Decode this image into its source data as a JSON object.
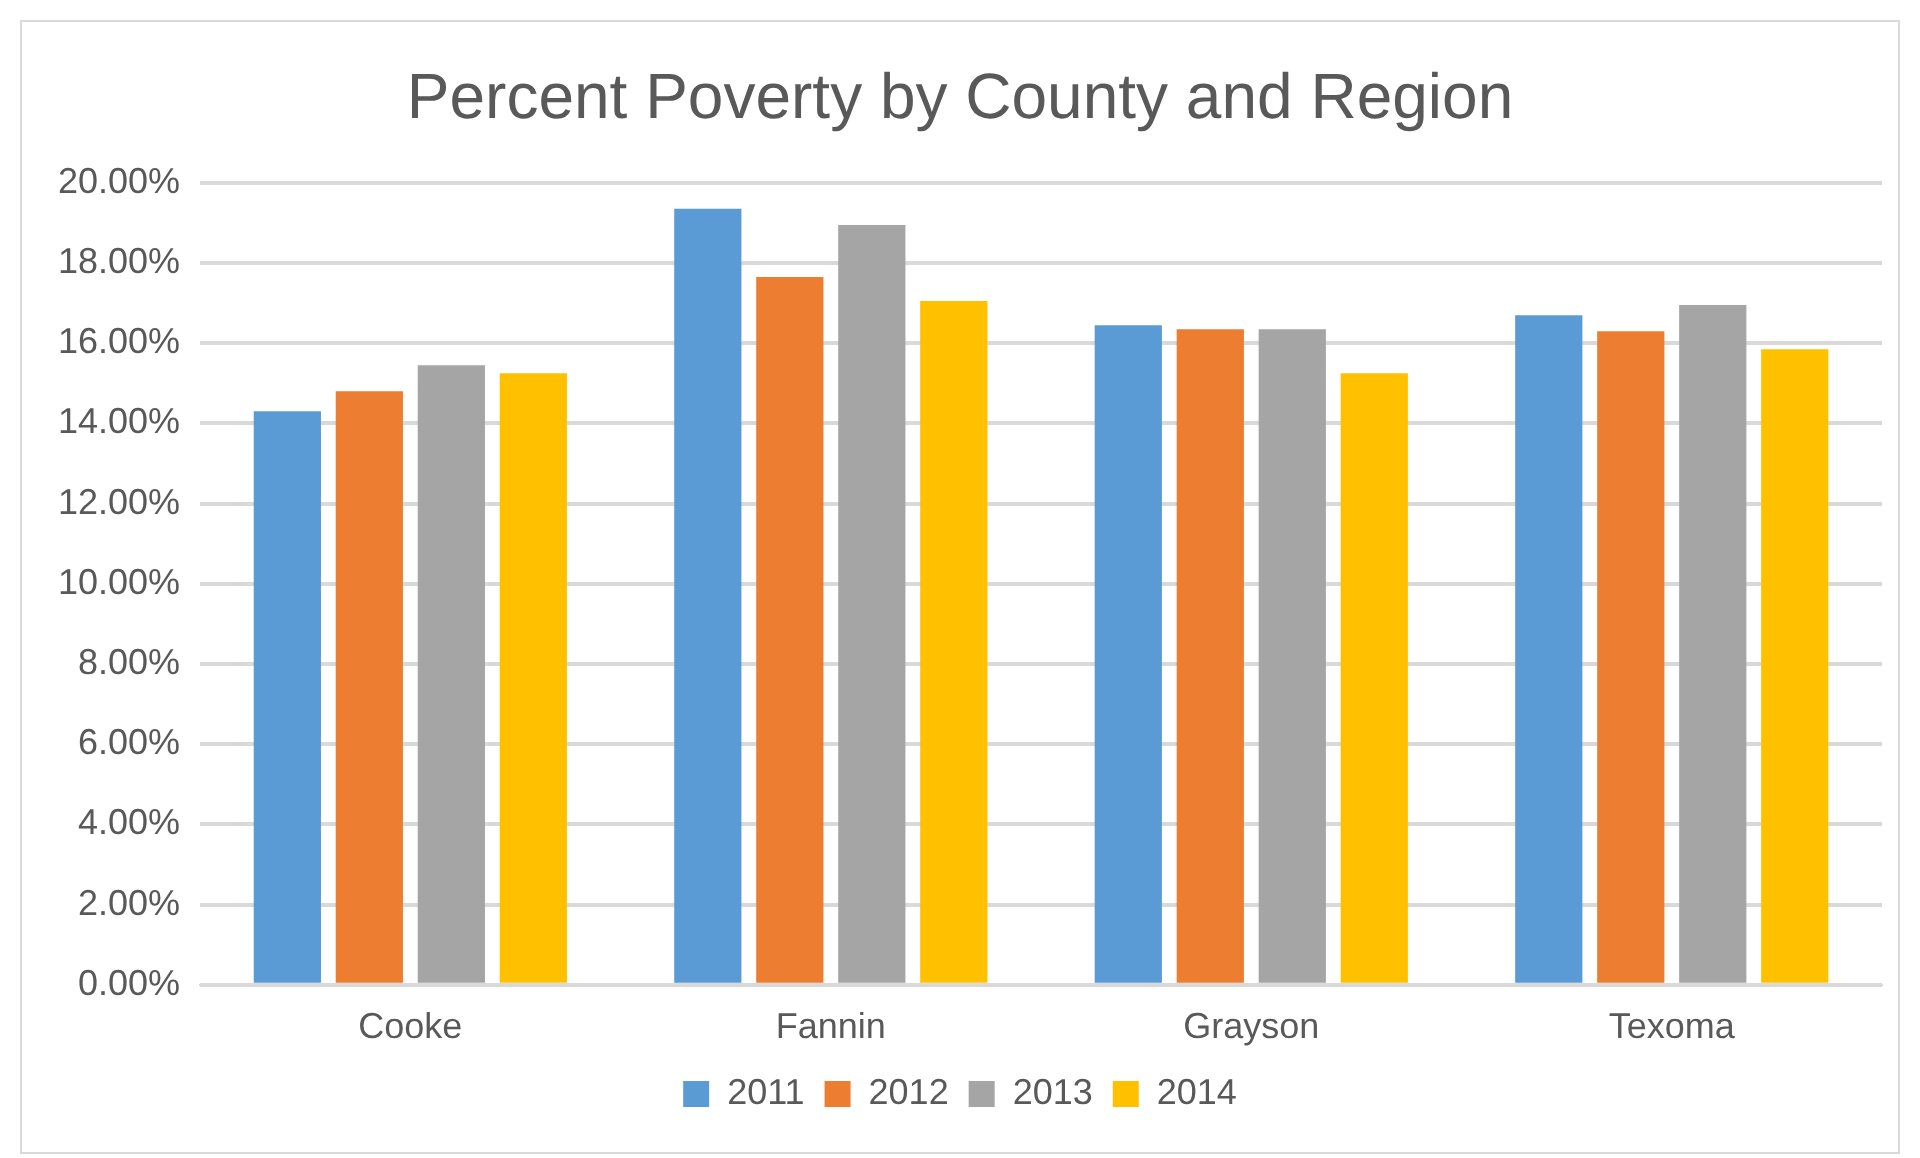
{
  "chart_data": {
    "type": "bar",
    "title": "Percent Poverty by County and Region",
    "categories": [
      "Cooke",
      "Fannin",
      "Grayson",
      "Texoma"
    ],
    "series": [
      {
        "name": "2011",
        "color": "#5b9bd5",
        "values": [
          14.3,
          19.35,
          16.45,
          16.7
        ]
      },
      {
        "name": "2012",
        "color": "#ed7d31",
        "values": [
          14.8,
          17.65,
          16.35,
          16.3
        ]
      },
      {
        "name": "2013",
        "color": "#a5a5a5",
        "values": [
          15.45,
          18.95,
          16.35,
          16.95
        ]
      },
      {
        "name": "2014",
        "color": "#ffc000",
        "values": [
          15.25,
          17.05,
          15.25,
          15.85
        ]
      }
    ],
    "ylim": [
      0,
      20
    ],
    "yticks": [
      {
        "value": 0,
        "label": "0.00%"
      },
      {
        "value": 2,
        "label": "2.00%"
      },
      {
        "value": 4,
        "label": "4.00%"
      },
      {
        "value": 6,
        "label": "6.00%"
      },
      {
        "value": 8,
        "label": "8.00%"
      },
      {
        "value": 10,
        "label": "10.00%"
      },
      {
        "value": 12,
        "label": "12.00%"
      },
      {
        "value": 14,
        "label": "14.00%"
      },
      {
        "value": 16,
        "label": "16.00%"
      },
      {
        "value": 18,
        "label": "18.00%"
      },
      {
        "value": 20,
        "label": "20.00%"
      }
    ],
    "grid": "y",
    "legend": "bottom"
  }
}
